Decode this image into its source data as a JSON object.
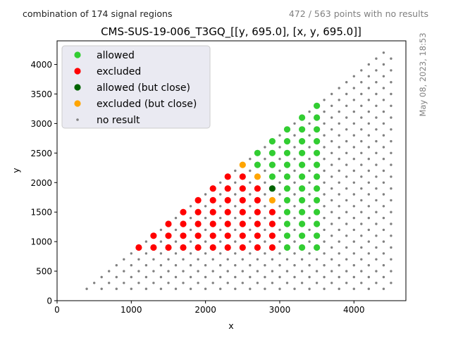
{
  "header": {
    "left_note": "combination of 174 signal regions",
    "right_note": "472 / 563 points with no results",
    "timestamp": "May 08, 2023, 18:53"
  },
  "chart_data": {
    "type": "scatter",
    "title": "CMS-SUS-19-006_T3GQ_[[y, 695.0], [x, y, 695.0]]",
    "xlabel": "x",
    "ylabel": "y",
    "xlim": [
      0,
      4700
    ],
    "ylim": [
      0,
      4400
    ],
    "xticks": [
      0,
      1000,
      2000,
      3000,
      4000
    ],
    "yticks": [
      0,
      500,
      1000,
      1500,
      2000,
      2500,
      3000,
      3500,
      4000
    ],
    "legend_position": "top-left",
    "colors": {
      "allowed": "#32cd32",
      "excluded": "#ff0000",
      "allowed_close": "#006400",
      "excluded_close": "#ffa500",
      "no_result": "#808080"
    },
    "series": [
      {
        "name": "allowed",
        "points": [
          [
            2700,
            2500
          ],
          [
            2700,
            2300
          ],
          [
            2900,
            2700
          ],
          [
            2900,
            2500
          ],
          [
            2900,
            2300
          ],
          [
            2900,
            2100
          ],
          [
            3100,
            2900
          ],
          [
            3100,
            2700
          ],
          [
            3100,
            2500
          ],
          [
            3100,
            2300
          ],
          [
            3100,
            2100
          ],
          [
            3100,
            1900
          ],
          [
            3100,
            1700
          ],
          [
            3100,
            1500
          ],
          [
            3100,
            1300
          ],
          [
            3100,
            1100
          ],
          [
            3100,
            900
          ],
          [
            3300,
            3100
          ],
          [
            3300,
            2900
          ],
          [
            3300,
            2700
          ],
          [
            3300,
            2500
          ],
          [
            3300,
            2300
          ],
          [
            3300,
            2100
          ],
          [
            3300,
            1900
          ],
          [
            3300,
            1700
          ],
          [
            3300,
            1500
          ],
          [
            3300,
            1300
          ],
          [
            3300,
            1100
          ],
          [
            3300,
            900
          ],
          [
            3500,
            3300
          ],
          [
            3500,
            3100
          ],
          [
            3500,
            2900
          ],
          [
            3500,
            2700
          ],
          [
            3500,
            2500
          ],
          [
            3500,
            2300
          ],
          [
            3500,
            2100
          ],
          [
            3500,
            1900
          ],
          [
            3500,
            1700
          ],
          [
            3500,
            1500
          ],
          [
            3500,
            1300
          ],
          [
            3500,
            1100
          ],
          [
            3500,
            900
          ]
        ]
      },
      {
        "name": "excluded",
        "points": [
          [
            1100,
            900
          ],
          [
            1300,
            1100
          ],
          [
            1300,
            900
          ],
          [
            1500,
            1300
          ],
          [
            1500,
            1100
          ],
          [
            1500,
            900
          ],
          [
            1700,
            1500
          ],
          [
            1700,
            1300
          ],
          [
            1700,
            1100
          ],
          [
            1700,
            900
          ],
          [
            1900,
            1700
          ],
          [
            1900,
            1500
          ],
          [
            1900,
            1300
          ],
          [
            1900,
            1100
          ],
          [
            1900,
            900
          ],
          [
            2100,
            1900
          ],
          [
            2100,
            1700
          ],
          [
            2100,
            1500
          ],
          [
            2100,
            1300
          ],
          [
            2100,
            1100
          ],
          [
            2100,
            900
          ],
          [
            2300,
            2100
          ],
          [
            2300,
            1900
          ],
          [
            2300,
            1700
          ],
          [
            2300,
            1500
          ],
          [
            2300,
            1300
          ],
          [
            2300,
            1100
          ],
          [
            2300,
            900
          ],
          [
            2500,
            2100
          ],
          [
            2500,
            1900
          ],
          [
            2500,
            1700
          ],
          [
            2500,
            1500
          ],
          [
            2500,
            1300
          ],
          [
            2500,
            1100
          ],
          [
            2500,
            900
          ],
          [
            2700,
            1900
          ],
          [
            2700,
            1700
          ],
          [
            2700,
            1500
          ],
          [
            2700,
            1300
          ],
          [
            2700,
            1100
          ],
          [
            2700,
            900
          ],
          [
            2900,
            1500
          ],
          [
            2900,
            1300
          ],
          [
            2900,
            1100
          ],
          [
            2900,
            900
          ]
        ]
      },
      {
        "name": "allowed (but close)",
        "points": [
          [
            2900,
            1900
          ]
        ]
      },
      {
        "name": "excluded (but close)",
        "points": [
          [
            2500,
            2300
          ],
          [
            2700,
            2100
          ],
          [
            2900,
            1700
          ]
        ]
      },
      {
        "name": "no result",
        "grid": {
          "x_start": 200,
          "x_end": 4500,
          "x_step": 100,
          "y_start": 200,
          "y_step": 100,
          "y_max_offset": -100,
          "y_cap": 4200
        }
      }
    ]
  }
}
